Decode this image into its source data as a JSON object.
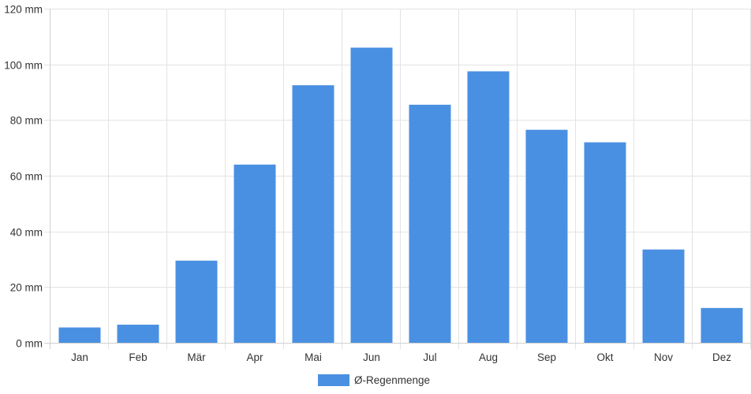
{
  "chart_data": {
    "type": "bar",
    "categories": [
      "Jan",
      "Feb",
      "Mär",
      "Apr",
      "Mai",
      "Jun",
      "Jul",
      "Aug",
      "Sep",
      "Okt",
      "Nov",
      "Dez"
    ],
    "series": [
      {
        "name": "Ø-Regenmenge",
        "color": "#4a90e2",
        "values": [
          5.5,
          6.5,
          29.5,
          64,
          92.5,
          106,
          85.5,
          97.5,
          76.5,
          72,
          33.5,
          12.5
        ]
      }
    ],
    "y_ticks": [
      "0 mm",
      "20 mm",
      "40 mm",
      "60 mm",
      "80 mm",
      "100 mm",
      "120 mm"
    ],
    "ylim": [
      0,
      120
    ],
    "grid": true,
    "legend_position": "bottom-center"
  }
}
